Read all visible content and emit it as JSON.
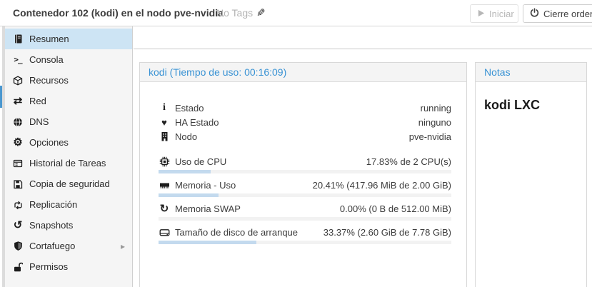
{
  "topbar": {
    "title": "Contenedor 102 (kodi) en el nodo pve-nvidia",
    "tags": {
      "label": "No Tags",
      "edit_icon": "pencil-icon"
    },
    "start_button": {
      "label": "Iniciar",
      "icon": "play-icon",
      "disabled": true
    },
    "shutdown_button": {
      "label": "Cierre ordena",
      "icon": "power-icon",
      "disabled": false
    }
  },
  "sidebar": {
    "items": [
      {
        "label": "Resumen",
        "icon": "book-icon",
        "selected": true
      },
      {
        "label": "Consola",
        "icon": "terminal-icon",
        "selected": false
      },
      {
        "label": "Recursos",
        "icon": "cube-icon",
        "selected": false
      },
      {
        "label": "Red",
        "icon": "network-arrows-icon",
        "selected": false
      },
      {
        "label": "DNS",
        "icon": "globe-icon",
        "selected": false
      },
      {
        "label": "Opciones",
        "icon": "gear-icon",
        "selected": false
      },
      {
        "label": "Historial de Tareas",
        "icon": "task-list-icon",
        "selected": false
      },
      {
        "label": "Copia de seguridad",
        "icon": "floppy-icon",
        "selected": false
      },
      {
        "label": "Replicación",
        "icon": "retweet-icon",
        "selected": false
      },
      {
        "label": "Snapshots",
        "icon": "history-icon",
        "selected": false
      },
      {
        "label": "Cortafuego",
        "icon": "shield-icon",
        "selected": false,
        "has_submenu": true
      },
      {
        "label": "Permisos",
        "icon": "unlock-icon",
        "selected": false
      }
    ]
  },
  "main_panel": {
    "title": "kodi (Tiempo de uso: 00:16:09)",
    "status_rows": [
      {
        "icon": "info-icon",
        "label": "Estado",
        "value": "running"
      },
      {
        "icon": "heartbeat-icon",
        "label": "HA Estado",
        "value": "ninguno"
      },
      {
        "icon": "building-icon",
        "label": "Nodo",
        "value": "pve-nvidia"
      }
    ],
    "usage_rows": [
      {
        "icon": "cpu-icon",
        "label": "Uso de CPU",
        "value": "17.83% de 2 CPU(s)",
        "percent": 17.83
      },
      {
        "icon": "memory-icon",
        "label": "Memoria - Uso",
        "value": "20.41% (417.96 MiB de 2.00 GiB)",
        "percent": 20.41
      },
      {
        "icon": "swap-icon",
        "label": "Memoria SWAP",
        "value": "0.00% (0 B de 512.00 MiB)",
        "percent": 0
      },
      {
        "icon": "disk-icon",
        "label": "Tamaño de disco de arranque",
        "value": "33.37% (2.60 GiB de 7.78 GiB)",
        "percent": 33.37
      }
    ]
  },
  "notes_panel": {
    "title": "Notas",
    "content": "kodi LXC"
  },
  "colors": {
    "accent_blue": "#3892d4",
    "sidebar_selected_bg": "#cde4f4",
    "progress_fill": "#c3daee",
    "progress_track": "#f2f2f2",
    "tree_selection": "#4a97cf"
  }
}
